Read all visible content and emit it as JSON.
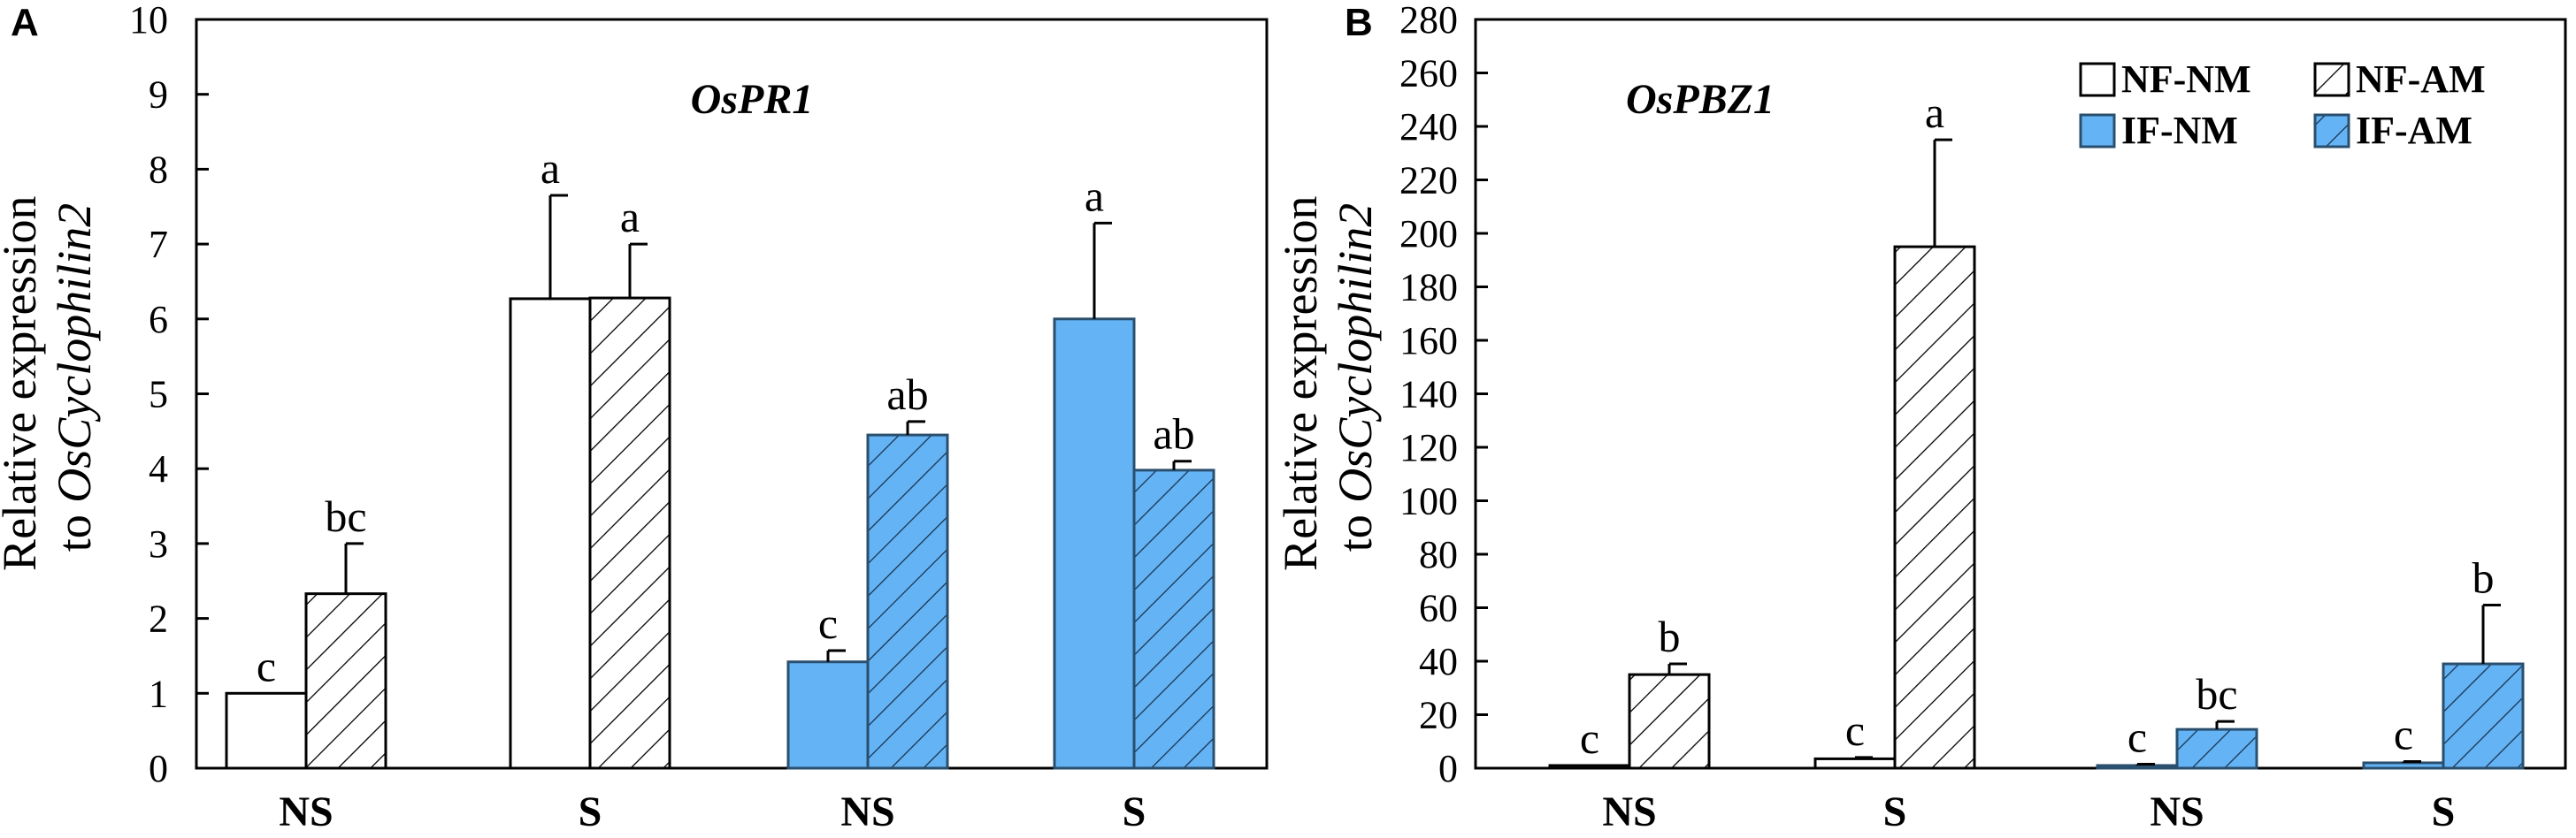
{
  "colors": {
    "nm_fill": "#ffffff",
    "if_fill": "#64b4f5",
    "if_stroke": "#2a4f6e",
    "stroke": "#000000"
  },
  "series_styles": [
    {
      "name": "NF-NM",
      "fill": "white",
      "hatch": false
    },
    {
      "name": "NF-AM",
      "fill": "white",
      "hatch": true
    },
    {
      "name": "IF-NM",
      "fill": "blue",
      "hatch": false
    },
    {
      "name": "IF-AM",
      "fill": "blue",
      "hatch": true
    }
  ],
  "chart_data": [
    {
      "panel": "A",
      "type": "bar",
      "title": "OsPR1",
      "ylabel_line1": "Relative expression",
      "ylabel_line2_prefix": "to ",
      "ylabel_line2_italic": "OsCyclophilin2",
      "ylim": [
        0,
        10
      ],
      "yticks": [
        0,
        1,
        2,
        3,
        4,
        5,
        6,
        7,
        8,
        9,
        10
      ],
      "categories": [
        "NS",
        "S",
        "NS",
        "S"
      ],
      "groups": [
        {
          "bars": [
            {
              "series": "NF-NM",
              "value": 1.0,
              "err": 0,
              "label": "c"
            },
            {
              "series": "NF-AM",
              "value": 2.33,
              "err": 0.67,
              "label": "bc"
            }
          ]
        },
        {
          "bars": [
            {
              "series": "NF-NM",
              "value": 6.27,
              "err": 1.38,
              "label": "a"
            },
            {
              "series": "NF-AM",
              "value": 6.28,
              "err": 0.72,
              "label": "a"
            }
          ]
        },
        {
          "bars": [
            {
              "series": "IF-NM",
              "value": 1.42,
              "err": 0.15,
              "label": "c"
            },
            {
              "series": "IF-AM",
              "value": 4.45,
              "err": 0.18,
              "label": "ab"
            }
          ]
        },
        {
          "bars": [
            {
              "series": "IF-NM",
              "value": 6.0,
              "err": 1.28,
              "label": "a"
            },
            {
              "series": "IF-AM",
              "value": 3.98,
              "err": 0.12,
              "label": "ab"
            }
          ]
        }
      ]
    },
    {
      "panel": "B",
      "type": "bar",
      "title": "OsPBZ1",
      "ylabel_line1": "Relative expression",
      "ylabel_line2_prefix": "to ",
      "ylabel_line2_italic": "OsCyclophilin2",
      "ylim": [
        0,
        280
      ],
      "yticks": [
        0,
        20,
        40,
        60,
        80,
        100,
        120,
        140,
        160,
        180,
        200,
        220,
        240,
        260,
        280
      ],
      "categories": [
        "NS",
        "S",
        "NS",
        "S"
      ],
      "legend": [
        "NF-NM",
        "NF-AM",
        "IF-NM",
        "IF-AM"
      ],
      "groups": [
        {
          "bars": [
            {
              "series": "NF-NM",
              "value": 1,
              "err": 0,
              "label": "c"
            },
            {
              "series": "NF-AM",
              "value": 35,
              "err": 4,
              "label": "b"
            }
          ]
        },
        {
          "bars": [
            {
              "series": "NF-NM",
              "value": 3.5,
              "err": 0.5,
              "label": "c"
            },
            {
              "series": "NF-AM",
              "value": 195,
              "err": 40,
              "label": "a"
            }
          ]
        },
        {
          "bars": [
            {
              "series": "IF-NM",
              "value": 1,
              "err": 0.5,
              "label": "c"
            },
            {
              "series": "IF-AM",
              "value": 14.5,
              "err": 3,
              "label": "bc"
            }
          ]
        },
        {
          "bars": [
            {
              "series": "IF-NM",
              "value": 2,
              "err": 0.5,
              "label": "c"
            },
            {
              "series": "IF-AM",
              "value": 39,
              "err": 22,
              "label": "b"
            }
          ]
        }
      ]
    }
  ]
}
